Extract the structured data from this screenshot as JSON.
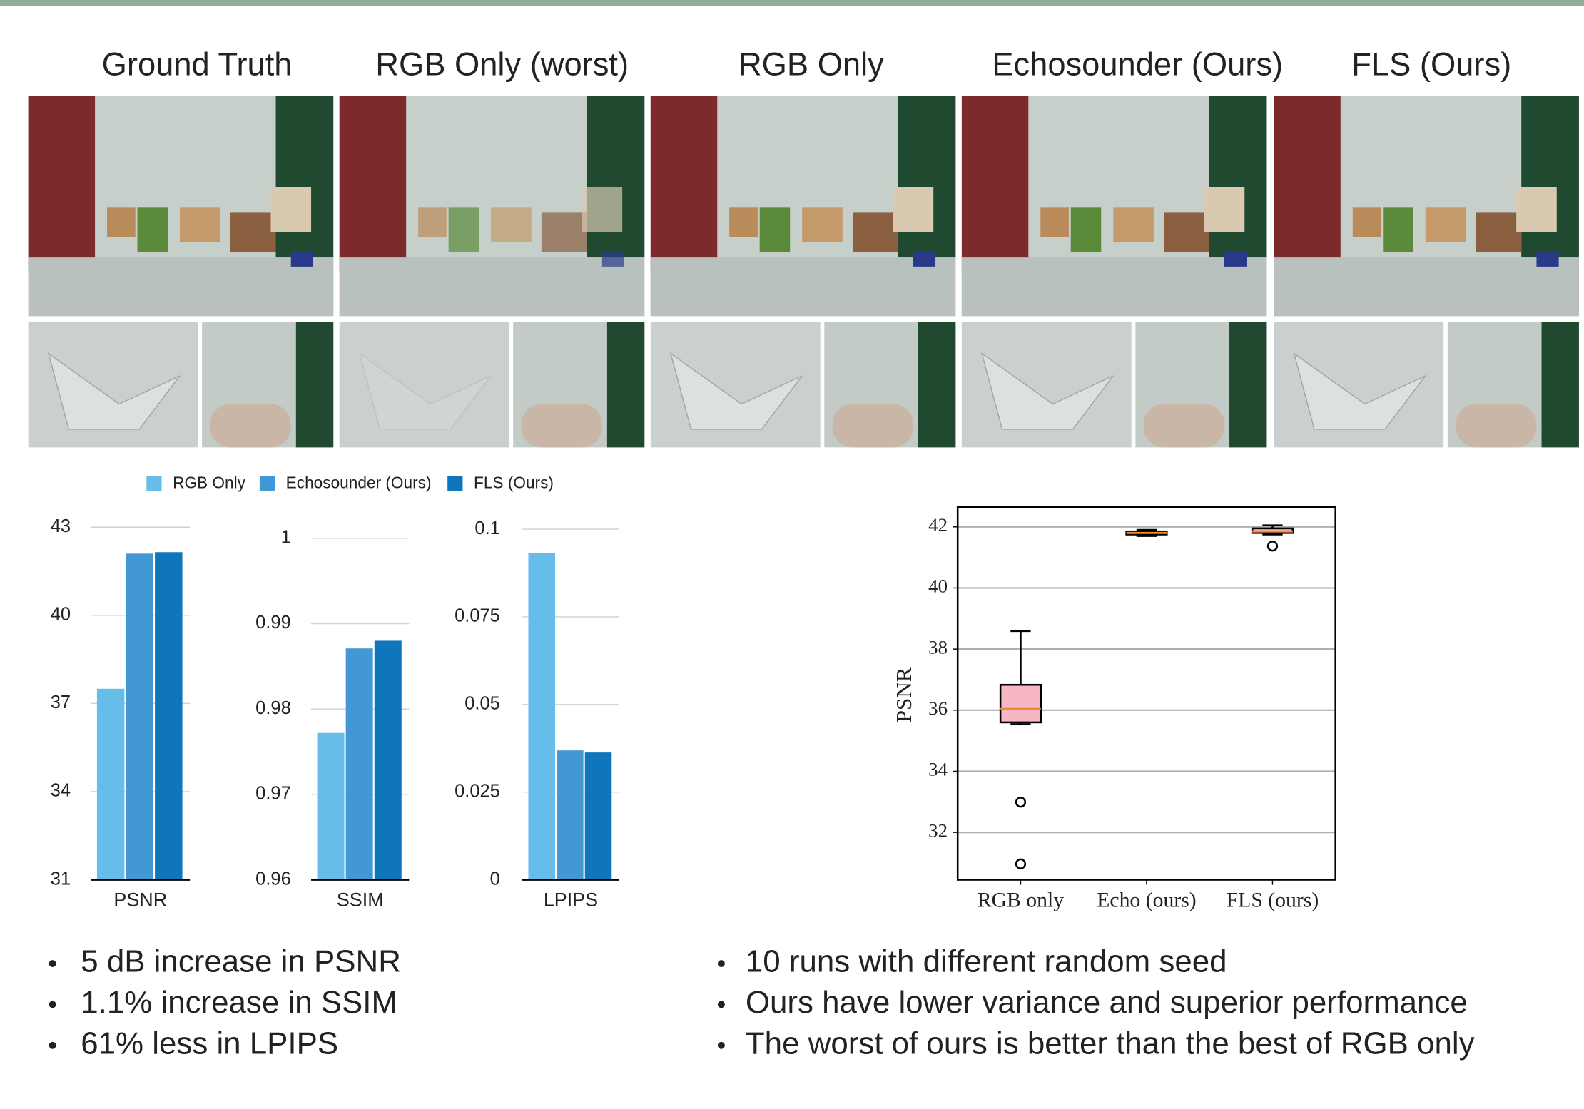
{
  "column_titles": [
    "Ground Truth",
    "RGB Only (worst)",
    "RGB Only",
    "Echosounder (Ours)",
    "FLS (Ours)"
  ],
  "chart_data": [
    {
      "type": "bar",
      "categories": [
        "PSNR"
      ],
      "ylim": [
        31,
        43
      ],
      "yticks": [
        31,
        34,
        37,
        40,
        43
      ],
      "grid": true,
      "series": [
        {
          "name": "RGB Only",
          "color": "#67bde9",
          "values": [
            37.5
          ]
        },
        {
          "name": "Echosounder (Ours)",
          "color": "#4198d4",
          "values": [
            42.1
          ]
        },
        {
          "name": "FLS (Ours)",
          "color": "#0f76bb",
          "values": [
            42.15
          ]
        }
      ]
    },
    {
      "type": "bar",
      "categories": [
        "SSIM"
      ],
      "ylim": [
        0.96,
        1
      ],
      "yticks": [
        0.96,
        0.97,
        0.98,
        0.99,
        1
      ],
      "grid": true,
      "series": [
        {
          "color": "#67bde9",
          "values": [
            0.9772
          ]
        },
        {
          "color": "#4198d4",
          "values": [
            0.9871
          ]
        },
        {
          "color": "#0f76bb",
          "values": [
            0.988
          ]
        }
      ]
    },
    {
      "type": "bar",
      "categories": [
        "LPIPS"
      ],
      "ylim": [
        0,
        0.1
      ],
      "yticks": [
        0,
        0.025,
        0.05,
        0.075,
        0.1
      ],
      "grid": true,
      "series": [
        {
          "color": "#67bde9",
          "values": [
            0.0931
          ]
        },
        {
          "color": "#4198d4",
          "values": [
            0.0369
          ]
        },
        {
          "color": "#0f76bb",
          "values": [
            0.0363
          ]
        }
      ]
    },
    {
      "type": "box",
      "ylabel": "PSNR",
      "categories": [
        "RGB only",
        "Echo (ours)",
        "FLS (ours)"
      ],
      "ylim": [
        30.45,
        42.65
      ],
      "yticks": [
        32,
        34,
        36,
        38,
        40,
        42
      ],
      "grid": true,
      "box_color": "#f7b6c4",
      "median_color": "#f08a2c",
      "boxes": [
        {
          "low": 35.54,
          "q1": 35.6,
          "median": 36.04,
          "q3": 36.83,
          "high": 38.59,
          "outliers": [
            32.99,
            30.97
          ]
        },
        {
          "low": 41.7,
          "q1": 41.75,
          "median": 41.8,
          "q3": 41.85,
          "high": 41.9,
          "outliers": []
        },
        {
          "low": 41.75,
          "q1": 41.8,
          "median": 41.85,
          "q3": 41.95,
          "high": 42.05,
          "outliers": [
            41.37
          ]
        }
      ]
    }
  ],
  "bullets_left": [
    "5 dB increase in PSNR",
    "1.1%  increase in SSIM",
    "61%  less in LPIPS"
  ],
  "bullets_right": [
    "10 runs with different random seed",
    "Ours have lower variance and superior performance",
    "The worst of ours is better than the best of RGB only"
  ]
}
